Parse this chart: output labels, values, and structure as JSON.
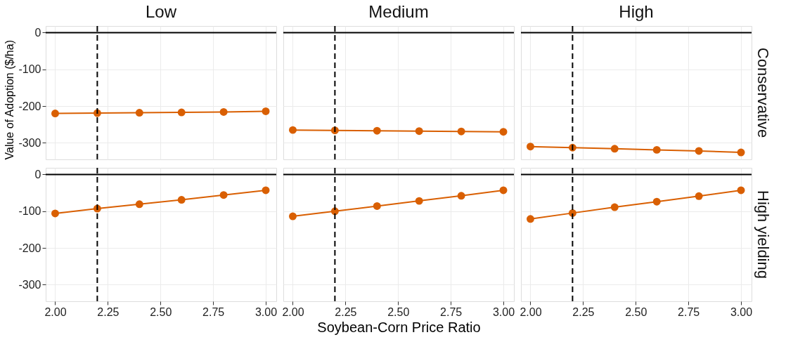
{
  "chart_data": [
    {
      "type": "line",
      "title": "Low",
      "x": [
        2.0,
        2.2,
        2.4,
        2.6,
        2.8,
        3.0
      ],
      "series": [
        {
          "color": "#d95f02",
          "values": [
            -220,
            -219,
            -218,
            -217,
            -216,
            -214
          ]
        }
      ],
      "ylabel": "Value of Adoption ($/ha)",
      "xlim": [
        1.955,
        3.05
      ],
      "ylim": [
        -345,
        18
      ],
      "xticks": [
        2.0,
        2.25,
        2.5,
        2.75,
        3.0
      ],
      "yticks": [
        0,
        -100,
        -200,
        -300
      ],
      "tick_labels": "y",
      "grid": true,
      "marker": "circle",
      "line_style": "solid",
      "ref_lines": [
        {
          "axis": "x",
          "value": 2.2,
          "line_style": "dashed",
          "color": "#000000"
        },
        {
          "axis": "y",
          "value": 0,
          "line_style": "solid",
          "color": "#000000"
        }
      ]
    },
    {
      "type": "line",
      "title": "Medium",
      "x": [
        2.0,
        2.2,
        2.4,
        2.6,
        2.8,
        3.0
      ],
      "series": [
        {
          "color": "#d95f02",
          "values": [
            -265,
            -266,
            -267,
            -268,
            -269,
            -270
          ]
        }
      ],
      "xlim": [
        1.955,
        3.05
      ],
      "ylim": [
        -345,
        18
      ],
      "xticks": [
        2.0,
        2.25,
        2.5,
        2.75,
        3.0
      ],
      "yticks": [
        0,
        -100,
        -200,
        -300
      ],
      "tick_labels": false,
      "grid": true,
      "marker": "circle",
      "line_style": "solid",
      "ref_lines": [
        {
          "axis": "x",
          "value": 2.2,
          "line_style": "dashed",
          "color": "#000000"
        },
        {
          "axis": "y",
          "value": 0,
          "line_style": "solid",
          "color": "#000000"
        }
      ]
    },
    {
      "type": "line",
      "title": "High",
      "annotations": [
        "Conservative"
      ],
      "x": [
        2.0,
        2.2,
        2.4,
        2.6,
        2.8,
        3.0
      ],
      "series": [
        {
          "color": "#d95f02",
          "values": [
            -310,
            -313,
            -316,
            -319,
            -322,
            -326
          ]
        }
      ],
      "xlim": [
        1.955,
        3.05
      ],
      "ylim": [
        -345,
        18
      ],
      "xticks": [
        2.0,
        2.25,
        2.5,
        2.75,
        3.0
      ],
      "yticks": [
        0,
        -100,
        -200,
        -300
      ],
      "tick_labels": false,
      "grid": true,
      "marker": "circle",
      "line_style": "solid",
      "ref_lines": [
        {
          "axis": "x",
          "value": 2.2,
          "line_style": "dashed",
          "color": "#000000"
        },
        {
          "axis": "y",
          "value": 0,
          "line_style": "solid",
          "color": "#000000"
        }
      ]
    },
    {
      "type": "line",
      "x": [
        2.0,
        2.2,
        2.4,
        2.6,
        2.8,
        3.0
      ],
      "series": [
        {
          "color": "#d95f02",
          "values": [
            -106,
            -93,
            -81,
            -69,
            -56,
            -43
          ]
        }
      ],
      "xlim": [
        1.955,
        3.05
      ],
      "ylim": [
        -345,
        18
      ],
      "xticks": [
        {
          "value": 2.0,
          "label": "2.00"
        },
        {
          "value": 2.25,
          "label": "2.25"
        },
        {
          "value": 2.5,
          "label": "2.50"
        },
        {
          "value": 2.75,
          "label": "2.75"
        },
        {
          "value": 3.0,
          "label": "3.00"
        }
      ],
      "yticks": [
        0,
        -100,
        -200,
        -300
      ],
      "grid": true,
      "marker": "circle",
      "line_style": "solid",
      "ref_lines": [
        {
          "axis": "x",
          "value": 2.2,
          "line_style": "dashed",
          "color": "#000000"
        },
        {
          "axis": "y",
          "value": 0,
          "line_style": "solid",
          "color": "#000000"
        }
      ]
    },
    {
      "type": "line",
      "xlabel": "Soybean-Corn Price Ratio",
      "x": [
        2.0,
        2.2,
        2.4,
        2.6,
        2.8,
        3.0
      ],
      "series": [
        {
          "color": "#d95f02",
          "values": [
            -114,
            -100,
            -86,
            -72,
            -58,
            -43
          ]
        }
      ],
      "xlim": [
        1.955,
        3.05
      ],
      "ylim": [
        -345,
        18
      ],
      "xticks": [
        {
          "value": 2.0,
          "label": "2.00"
        },
        {
          "value": 2.25,
          "label": "2.25"
        },
        {
          "value": 2.5,
          "label": "2.50"
        },
        {
          "value": 2.75,
          "label": "2.75"
        },
        {
          "value": 3.0,
          "label": "3.00"
        }
      ],
      "yticks": [
        0,
        -100,
        -200,
        -300
      ],
      "tick_labels": "x",
      "grid": true,
      "marker": "circle",
      "line_style": "solid",
      "ref_lines": [
        {
          "axis": "x",
          "value": 2.2,
          "line_style": "dashed",
          "color": "#000000"
        },
        {
          "axis": "y",
          "value": 0,
          "line_style": "solid",
          "color": "#000000"
        }
      ]
    },
    {
      "type": "line",
      "annotations": [
        "High yielding"
      ],
      "x": [
        2.0,
        2.2,
        2.4,
        2.6,
        2.8,
        3.0
      ],
      "series": [
        {
          "color": "#d95f02",
          "values": [
            -121,
            -105,
            -89,
            -74,
            -59,
            -43
          ]
        }
      ],
      "xlim": [
        1.955,
        3.05
      ],
      "ylim": [
        -345,
        18
      ],
      "xticks": [
        {
          "value": 2.0,
          "label": "2.00"
        },
        {
          "value": 2.25,
          "label": "2.25"
        },
        {
          "value": 2.5,
          "label": "2.50"
        },
        {
          "value": 2.75,
          "label": "2.75"
        },
        {
          "value": 3.0,
          "label": "3.00"
        }
      ],
      "yticks": [
        0,
        -100,
        -200,
        -300
      ],
      "tick_labels": "x",
      "grid": true,
      "marker": "circle",
      "line_style": "solid",
      "ref_lines": [
        {
          "axis": "x",
          "value": 2.2,
          "line_style": "dashed",
          "color": "#000000"
        },
        {
          "axis": "y",
          "value": 0,
          "line_style": "solid",
          "color": "#000000"
        }
      ]
    }
  ]
}
